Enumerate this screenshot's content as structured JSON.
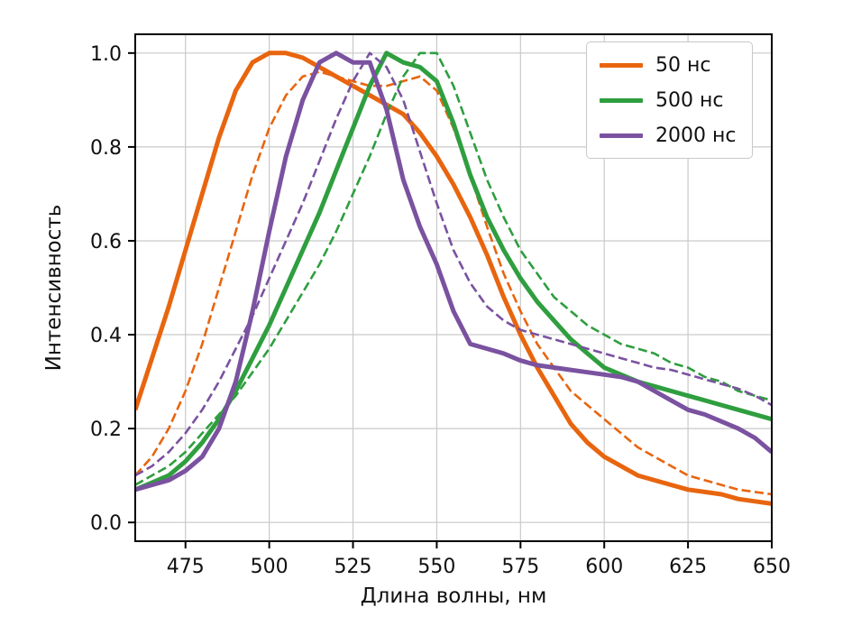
{
  "figure": {
    "background_color": "#ffffff",
    "grid_color": "#c9c9c9",
    "spine_color": "#000000"
  },
  "chart_data": {
    "type": "line",
    "title": "",
    "xlabel": "Длина волны, нм",
    "ylabel": "Интенсивность",
    "xlim": [
      460,
      650
    ],
    "ylim": [
      -0.04,
      1.04
    ],
    "xticks": [
      475,
      500,
      525,
      550,
      575,
      600,
      625,
      650
    ],
    "yticks": [
      0.0,
      0.2,
      0.4,
      0.6,
      0.8,
      1.0
    ],
    "grid": true,
    "legend_position": "upper right",
    "legend_entries": [
      "50 нс",
      "500 нс",
      "2000 нс"
    ],
    "series": [
      {
        "name": "50 нс",
        "color": "#e8650f",
        "style": "solid",
        "legend": true,
        "x": [
          460,
          465,
          470,
          475,
          480,
          485,
          490,
          495,
          500,
          505,
          510,
          515,
          520,
          525,
          530,
          535,
          540,
          545,
          550,
          555,
          560,
          565,
          570,
          575,
          580,
          585,
          590,
          595,
          600,
          605,
          610,
          615,
          620,
          625,
          630,
          635,
          640,
          645,
          650
        ],
        "y": [
          0.24,
          0.35,
          0.46,
          0.58,
          0.7,
          0.82,
          0.92,
          0.98,
          1.0,
          1.0,
          0.99,
          0.97,
          0.95,
          0.93,
          0.91,
          0.89,
          0.87,
          0.83,
          0.78,
          0.72,
          0.65,
          0.57,
          0.48,
          0.4,
          0.33,
          0.27,
          0.21,
          0.17,
          0.14,
          0.12,
          0.1,
          0.09,
          0.08,
          0.07,
          0.065,
          0.06,
          0.05,
          0.045,
          0.04
        ]
      },
      {
        "name": "50 нс (пунктир)",
        "color": "#e8650f",
        "style": "dashed",
        "legend": false,
        "x": [
          460,
          465,
          470,
          475,
          480,
          485,
          490,
          495,
          500,
          505,
          510,
          515,
          520,
          525,
          530,
          535,
          540,
          545,
          550,
          555,
          560,
          565,
          570,
          575,
          580,
          585,
          590,
          595,
          600,
          605,
          610,
          615,
          620,
          625,
          630,
          635,
          640,
          645,
          650
        ],
        "y": [
          0.1,
          0.14,
          0.2,
          0.28,
          0.38,
          0.5,
          0.62,
          0.74,
          0.84,
          0.91,
          0.95,
          0.96,
          0.95,
          0.94,
          0.93,
          0.93,
          0.94,
          0.95,
          0.92,
          0.84,
          0.74,
          0.63,
          0.53,
          0.45,
          0.38,
          0.33,
          0.28,
          0.25,
          0.22,
          0.19,
          0.16,
          0.14,
          0.12,
          0.1,
          0.09,
          0.08,
          0.07,
          0.065,
          0.06
        ]
      },
      {
        "name": "500 нс",
        "color": "#2f9e3f",
        "style": "solid",
        "legend": true,
        "x": [
          460,
          465,
          470,
          475,
          480,
          485,
          490,
          495,
          500,
          505,
          510,
          515,
          520,
          525,
          530,
          535,
          540,
          545,
          550,
          555,
          560,
          565,
          570,
          575,
          580,
          585,
          590,
          595,
          600,
          605,
          610,
          615,
          620,
          625,
          630,
          635,
          640,
          645,
          650
        ],
        "y": [
          0.07,
          0.085,
          0.1,
          0.13,
          0.17,
          0.22,
          0.28,
          0.35,
          0.42,
          0.5,
          0.58,
          0.66,
          0.75,
          0.84,
          0.93,
          1.0,
          0.98,
          0.97,
          0.94,
          0.85,
          0.74,
          0.65,
          0.58,
          0.52,
          0.47,
          0.43,
          0.39,
          0.36,
          0.33,
          0.315,
          0.3,
          0.29,
          0.28,
          0.27,
          0.26,
          0.25,
          0.24,
          0.23,
          0.22
        ]
      },
      {
        "name": "500 нс (пунктир)",
        "color": "#2f9e3f",
        "style": "dashed",
        "legend": false,
        "x": [
          460,
          465,
          470,
          475,
          480,
          485,
          490,
          495,
          500,
          505,
          510,
          515,
          520,
          525,
          530,
          535,
          540,
          545,
          550,
          555,
          560,
          565,
          570,
          575,
          580,
          585,
          590,
          595,
          600,
          605,
          610,
          615,
          620,
          625,
          630,
          635,
          640,
          645,
          650
        ],
        "y": [
          0.08,
          0.1,
          0.12,
          0.15,
          0.19,
          0.23,
          0.27,
          0.32,
          0.37,
          0.43,
          0.49,
          0.55,
          0.62,
          0.7,
          0.78,
          0.87,
          0.95,
          1.0,
          1.0,
          0.93,
          0.83,
          0.73,
          0.65,
          0.58,
          0.53,
          0.48,
          0.45,
          0.42,
          0.4,
          0.38,
          0.37,
          0.36,
          0.34,
          0.33,
          0.31,
          0.3,
          0.28,
          0.27,
          0.26
        ]
      },
      {
        "name": "2000 нс",
        "color": "#7a52a0",
        "style": "solid",
        "legend": true,
        "x": [
          460,
          465,
          470,
          475,
          480,
          485,
          490,
          495,
          500,
          505,
          510,
          515,
          520,
          525,
          530,
          535,
          540,
          545,
          550,
          555,
          560,
          565,
          570,
          575,
          580,
          585,
          590,
          595,
          600,
          605,
          610,
          615,
          620,
          625,
          630,
          635,
          640,
          645,
          650
        ],
        "y": [
          0.07,
          0.08,
          0.09,
          0.11,
          0.14,
          0.2,
          0.3,
          0.45,
          0.62,
          0.78,
          0.9,
          0.98,
          1.0,
          0.98,
          0.98,
          0.88,
          0.73,
          0.63,
          0.55,
          0.45,
          0.38,
          0.37,
          0.36,
          0.345,
          0.335,
          0.33,
          0.325,
          0.32,
          0.315,
          0.31,
          0.3,
          0.28,
          0.26,
          0.24,
          0.23,
          0.215,
          0.2,
          0.18,
          0.15
        ]
      },
      {
        "name": "2000 нс (пунктир)",
        "color": "#7a52a0",
        "style": "dashed",
        "legend": false,
        "x": [
          460,
          465,
          470,
          475,
          480,
          485,
          490,
          495,
          500,
          505,
          510,
          515,
          520,
          525,
          530,
          535,
          540,
          545,
          550,
          555,
          560,
          565,
          570,
          575,
          580,
          585,
          590,
          595,
          600,
          605,
          610,
          615,
          620,
          625,
          630,
          635,
          640,
          645,
          650
        ],
        "y": [
          0.1,
          0.12,
          0.15,
          0.19,
          0.24,
          0.3,
          0.37,
          0.44,
          0.52,
          0.6,
          0.68,
          0.77,
          0.86,
          0.94,
          1.0,
          0.97,
          0.9,
          0.79,
          0.68,
          0.58,
          0.51,
          0.46,
          0.43,
          0.41,
          0.4,
          0.39,
          0.38,
          0.37,
          0.36,
          0.35,
          0.34,
          0.33,
          0.325,
          0.315,
          0.305,
          0.295,
          0.285,
          0.27,
          0.25
        ]
      }
    ]
  }
}
